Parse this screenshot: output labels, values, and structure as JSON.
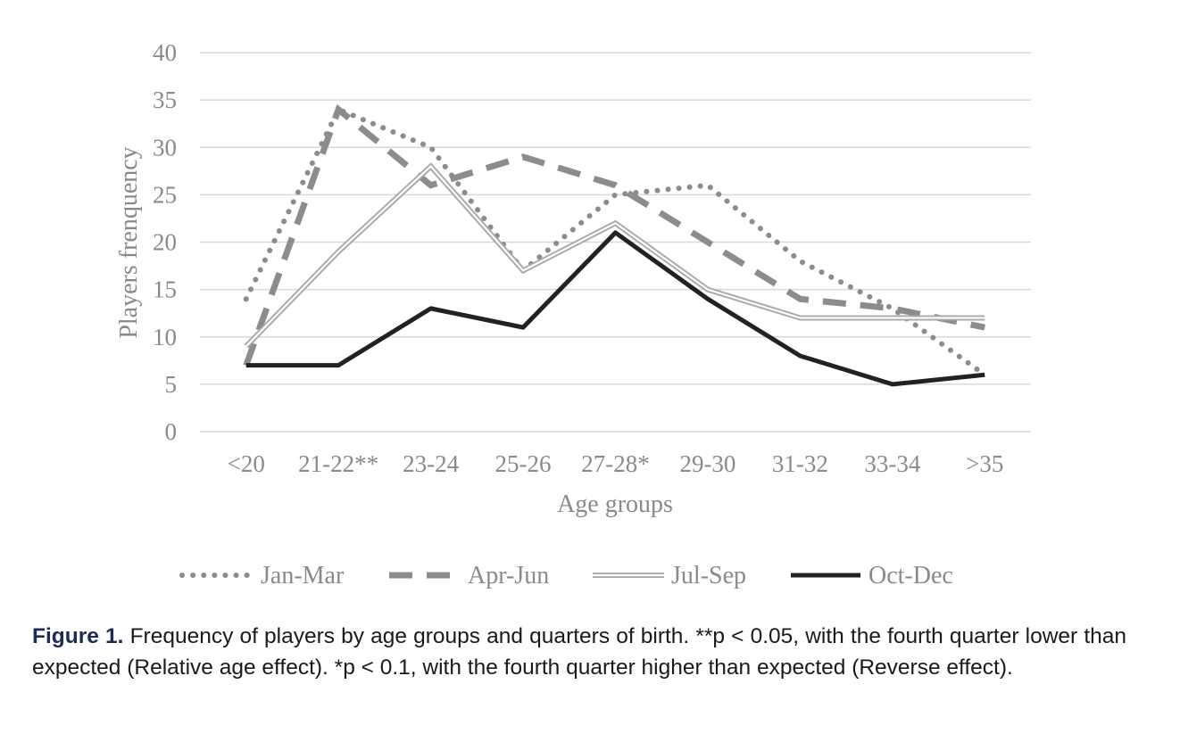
{
  "chart_data": {
    "type": "line",
    "xlabel": "Age groups",
    "ylabel": "Players frenquency",
    "ylim": [
      0,
      40
    ],
    "yticks": [
      0,
      5,
      10,
      15,
      20,
      25,
      30,
      35,
      40
    ],
    "grid": "horizontal",
    "legend_position": "bottom",
    "categories": [
      "<20",
      "21-22**",
      "23-24",
      "25-26",
      "27-28*",
      "29-30",
      "31-32",
      "33-34",
      ">35"
    ],
    "series": [
      {
        "name": "Jan-Mar",
        "style": "dotted",
        "color": "#8c8c8c",
        "values": [
          14,
          34,
          30,
          17,
          25,
          26,
          18,
          13,
          6
        ]
      },
      {
        "name": "Apr-Jun",
        "style": "dashed",
        "color": "#8c8c8c",
        "values": [
          7,
          34,
          26,
          29,
          26,
          20,
          14,
          13,
          11
        ]
      },
      {
        "name": "Jul-Sep",
        "style": "double",
        "color": "#a8a8a8",
        "values": [
          9,
          19,
          28,
          17,
          22,
          15,
          12,
          12,
          12
        ]
      },
      {
        "name": "Oct-Dec",
        "style": "solid",
        "color": "#222222",
        "values": [
          7,
          7,
          13,
          11,
          21,
          14,
          8,
          5,
          6
        ]
      }
    ]
  },
  "caption": {
    "label": "Figure 1.",
    "text": "Frequency of players by age groups and quarters of birth. **p < 0.05, with the fourth quarter lower than expected (Relative age effect). *p < 0.1, with the fourth quarter higher than expected (Reverse effect)."
  }
}
